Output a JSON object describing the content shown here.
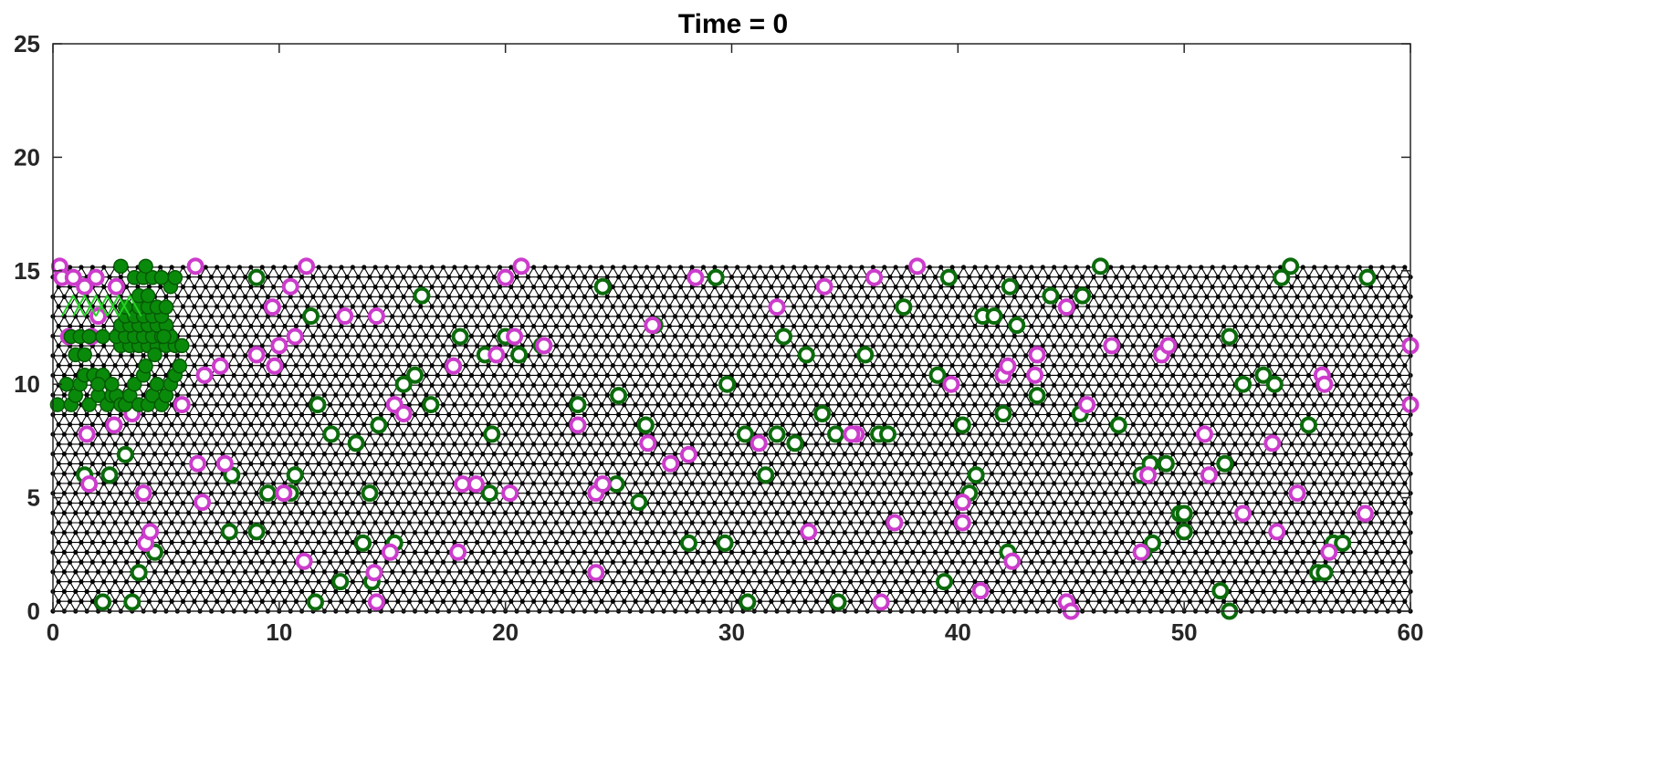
{
  "chart_data": {
    "type": "scatter",
    "title": "Time = 0",
    "xlabel": "",
    "ylabel": "",
    "xlim": [
      0,
      60
    ],
    "ylim": [
      0,
      25
    ],
    "x_ticks": [
      0,
      10,
      20,
      30,
      40,
      50,
      60
    ],
    "y_ticks": [
      0,
      5,
      10,
      15,
      20,
      25
    ],
    "x_tick_labels": [
      "0",
      "10",
      "20",
      "30",
      "40",
      "50",
      "60"
    ],
    "y_tick_labels": [
      "0",
      "5",
      "10",
      "15",
      "20",
      "25"
    ],
    "grid": false,
    "legend": "none",
    "lattice": {
      "description_shape": "triangular",
      "x_range": [
        0,
        60
      ],
      "y_range": [
        0,
        15.2
      ],
      "spacing": 0.5,
      "color": "#000000"
    },
    "colors": {
      "lattice": "#000000",
      "green_ring": "#0b6b0b",
      "magenta_ring": "#cc3ccc",
      "green_filled": "#0a8a0a",
      "green_edge": "#24d024"
    },
    "series": [
      {
        "marker": "green-ring",
        "x": [
          1.4,
          2.5,
          3.2,
          9.0,
          10.7,
          11.4,
          11.7,
          12.3,
          13.4,
          14.0,
          14.4,
          15.5,
          16.0,
          16.3,
          16.7,
          18.0,
          19.1,
          19.4,
          20.0,
          20.6,
          21.6,
          23.2,
          24.3,
          25.0,
          26.2,
          26.6,
          28.1,
          29.3,
          29.7,
          29.8,
          30.6,
          31.5,
          32.0,
          32.3,
          32.8,
          33.3,
          34.0,
          34.6,
          35.9,
          36.5,
          36.9,
          37.6,
          39.1,
          39.6,
          40.2,
          40.5,
          40.8,
          41.1,
          41.6,
          42.0,
          42.3,
          42.6,
          43.5,
          44.1,
          45.4,
          45.5,
          46.3,
          47.1,
          48.1,
          48.5,
          49.2,
          49.8,
          50.0,
          51.8,
          52.0,
          52.6,
          53.5,
          54.0,
          54.7,
          55.5,
          56.6,
          58.1,
          2.2,
          3.5,
          3.8,
          4.5,
          7.8,
          7.9,
          9.0,
          9.5,
          10.5,
          11.6,
          12.7,
          13.7,
          14.1,
          15.1,
          19.3,
          24.9,
          25.9,
          30.7,
          34.7,
          39.4,
          42.2,
          48.2,
          48.6,
          50.0,
          51.6,
          52.0,
          54.3,
          55.9,
          56.2,
          57.0
        ],
        "y": [
          6.0,
          6.0,
          6.9,
          14.7,
          6.0,
          13.0,
          9.1,
          7.8,
          7.4,
          5.2,
          8.2,
          10.0,
          10.4,
          13.9,
          9.1,
          12.1,
          11.3,
          7.8,
          12.1,
          11.3,
          11.7,
          9.1,
          14.3,
          9.5,
          8.2,
          12.6,
          3.0,
          14.7,
          3.0,
          10.0,
          7.8,
          6.0,
          7.8,
          12.1,
          7.4,
          11.3,
          8.7,
          7.8,
          11.3,
          7.8,
          7.8,
          13.4,
          10.4,
          14.7,
          8.2,
          5.2,
          6.0,
          13.0,
          13.0,
          8.7,
          14.3,
          12.6,
          9.5,
          13.9,
          8.7,
          13.9,
          15.2,
          8.2,
          6.0,
          6.5,
          6.5,
          4.3,
          3.5,
          6.5,
          12.1,
          10.0,
          10.4,
          10.0,
          15.2,
          8.2,
          3.0,
          14.7,
          0.4,
          0.4,
          1.7,
          2.6,
          3.5,
          6.0,
          3.5,
          5.2,
          5.2,
          0.4,
          1.3,
          3.0,
          1.3,
          3.0,
          5.2,
          5.6,
          4.8,
          0.4,
          0.4,
          1.3,
          2.6,
          2.6,
          3.0,
          4.3,
          0.9,
          0.0,
          14.7,
          1.7,
          1.7,
          3.0
        ]
      },
      {
        "marker": "magenta-ring",
        "x": [
          0.3,
          0.4,
          0.7,
          0.9,
          1.4,
          1.5,
          1.7,
          1.9,
          2.0,
          2.7,
          2.8,
          3.5,
          3.5,
          4.0,
          5.7,
          6.3,
          6.4,
          6.7,
          7.4,
          7.6,
          9.0,
          9.7,
          9.8,
          10.0,
          10.2,
          10.5,
          10.7,
          11.2,
          12.9,
          14.3,
          15.1,
          15.5,
          17.7,
          18.1,
          18.7,
          19.6,
          20.0,
          20.2,
          20.4,
          20.7,
          21.7,
          23.2,
          24.0,
          24.3,
          26.3,
          26.5,
          27.3,
          28.1,
          28.4,
          31.2,
          32.0,
          33.4,
          34.1,
          35.5,
          36.3,
          37.2,
          38.2,
          39.7,
          40.2,
          40.2,
          41.0,
          42.0,
          42.2,
          42.4,
          43.4,
          43.5,
          44.8,
          44.8,
          45.7,
          46.8,
          48.1,
          48.4,
          49.0,
          49.3,
          50.9,
          51.1,
          52.6,
          53.9,
          54.1,
          55.0,
          56.1,
          56.2,
          56.4,
          58.0,
          60.0,
          60.0,
          1.6,
          4.1,
          4.3,
          6.6,
          11.1,
          14.3,
          14.9,
          14.2,
          17.9,
          24.0,
          35.3,
          36.6,
          44.8,
          45.0
        ],
        "y": [
          15.2,
          14.7,
          12.1,
          14.7,
          14.3,
          7.8,
          12.1,
          14.7,
          13.0,
          8.2,
          14.3,
          8.7,
          12.1,
          5.2,
          9.1,
          15.2,
          6.5,
          10.4,
          10.8,
          6.5,
          11.3,
          13.4,
          10.8,
          11.7,
          5.2,
          14.3,
          12.1,
          15.2,
          13.0,
          13.0,
          9.1,
          8.7,
          10.8,
          5.6,
          5.6,
          11.3,
          14.7,
          5.2,
          12.1,
          15.2,
          11.7,
          8.2,
          5.2,
          5.6,
          7.4,
          12.6,
          6.5,
          6.9,
          14.7,
          7.4,
          13.4,
          3.5,
          14.3,
          7.8,
          14.7,
          3.9,
          15.2,
          10.0,
          3.9,
          4.8,
          0.9,
          10.4,
          10.8,
          2.2,
          10.4,
          11.3,
          13.4,
          0.4,
          9.1,
          11.7,
          2.6,
          6.0,
          11.3,
          11.7,
          7.8,
          6.0,
          4.3,
          7.4,
          3.5,
          5.2,
          10.4,
          10.0,
          2.6,
          4.3,
          9.1,
          11.7,
          5.6,
          3.0,
          3.5,
          4.8,
          2.2,
          0.4,
          2.6,
          1.7,
          2.6,
          1.7,
          7.8,
          0.4,
          0.4,
          0.0
        ]
      },
      {
        "marker": "green-filled",
        "x": [
          0.2,
          0.6,
          0.8,
          1.0,
          1.2,
          1.4,
          1.6,
          1.8,
          2.0,
          2.2,
          2.4,
          2.6,
          2.8,
          3.0,
          3.2,
          3.4,
          3.6,
          3.8,
          4.0,
          4.2,
          4.4,
          4.6,
          4.8,
          5.0,
          5.2,
          5.4,
          5.6,
          1.0,
          1.4,
          2.0,
          2.6,
          3.0,
          3.4,
          3.8,
          4.2,
          4.6,
          5.0,
          5.4,
          0.8,
          1.2,
          1.6,
          2.2,
          2.8,
          3.2,
          3.6,
          4.0,
          4.4,
          4.8,
          5.2,
          3.0,
          3.4,
          3.8,
          4.2,
          4.6,
          5.0,
          3.2,
          3.6,
          4.0,
          4.4,
          4.8,
          3.8,
          4.2,
          4.6,
          5.0,
          3.8,
          4.2,
          5.2,
          3.0,
          3.6,
          4.0,
          4.4,
          4.8,
          5.4,
          3.2,
          4.1,
          4.5,
          4.9,
          5.7,
          4.1
        ],
        "y": [
          9.1,
          10.0,
          9.1,
          9.5,
          10.0,
          10.4,
          9.1,
          10.4,
          9.5,
          10.4,
          9.1,
          9.5,
          9.5,
          9.1,
          9.1,
          9.5,
          10.0,
          9.1,
          10.4,
          9.1,
          9.5,
          10.0,
          9.1,
          9.5,
          10.0,
          10.4,
          10.8,
          11.3,
          11.3,
          10.0,
          10.0,
          11.7,
          11.7,
          11.7,
          11.7,
          11.7,
          11.7,
          11.7,
          12.1,
          12.1,
          12.1,
          12.1,
          12.1,
          12.1,
          12.1,
          12.1,
          12.1,
          12.1,
          12.1,
          12.6,
          12.6,
          12.6,
          12.6,
          12.6,
          12.6,
          13.0,
          13.0,
          13.0,
          13.0,
          13.0,
          13.4,
          13.4,
          13.4,
          13.4,
          13.9,
          13.9,
          14.3,
          15.2,
          14.7,
          14.7,
          14.7,
          14.7,
          14.7,
          13.4,
          10.8,
          11.3,
          12.1,
          11.7,
          15.2
        ]
      }
    ]
  }
}
